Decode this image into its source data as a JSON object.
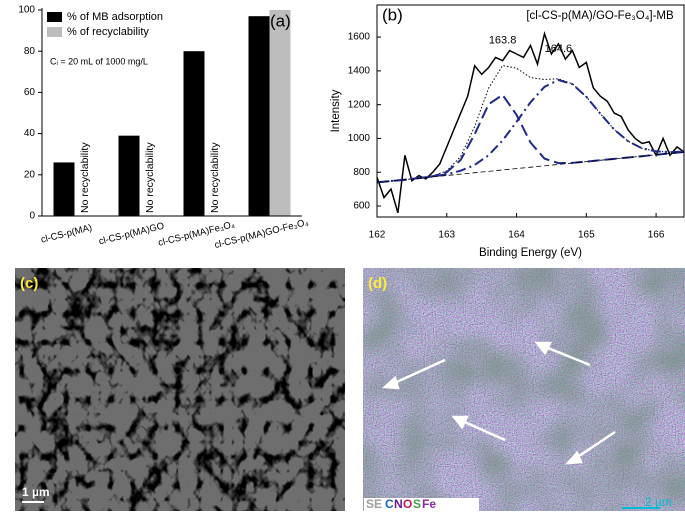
{
  "chart_data": [
    {
      "type": "bar",
      "panel_label": "(a)",
      "note": "Cᵢ = 20 mL of 1000 mg/L",
      "categories": [
        "cl-CS-p(MA)",
        "cl-CS-p(MA)GO",
        "cl-CS-p(MA)Fe₃O₄",
        "cl-CS-p(MA)GO-Fe₃O₄"
      ],
      "series": [
        {
          "name": "% of MB adsorption",
          "color": "#000000",
          "values": [
            26,
            39,
            80,
            97
          ]
        },
        {
          "name": "% of recyclability",
          "color": "#bdbdbd",
          "values": [
            null,
            null,
            null,
            100
          ],
          "value_labels": [
            "No recyclability",
            "No recyclability",
            "No recyclability",
            null
          ]
        }
      ],
      "ylim": [
        0,
        100
      ],
      "yticks": [
        0,
        20,
        40,
        60,
        80,
        100
      ],
      "legend": "upper-left"
    },
    {
      "type": "line",
      "panel_label": "(b)",
      "title": "[cl-CS-p(MA)/GO-Fe₃O₄]-MB",
      "x_label": "Binding Energy (eV)",
      "y_label": "Intensity",
      "annotations": [
        {
          "text": "163.8",
          "x": 163.8,
          "y": 1580
        },
        {
          "text": "164.6",
          "x": 164.6,
          "y": 1530
        }
      ],
      "xlim": [
        162,
        166.4
      ],
      "xticks": [
        162,
        163,
        164,
        165,
        166
      ],
      "ylim": [
        535,
        1790
      ],
      "yticks": [
        600,
        800,
        1000,
        1200,
        1400,
        1600
      ],
      "series": [
        {
          "color": "#000000",
          "style": "solid",
          "x": [
            162.0,
            162.1,
            162.2,
            162.3,
            162.4,
            162.5,
            162.6,
            162.7,
            162.8,
            162.9,
            163.0,
            163.1,
            163.2,
            163.3,
            163.4,
            163.5,
            163.6,
            163.7,
            163.8,
            163.9,
            164.0,
            164.1,
            164.2,
            164.3,
            164.4,
            164.5,
            164.6,
            164.7,
            164.8,
            164.9,
            165.0,
            165.1,
            165.2,
            165.3,
            165.4,
            165.5,
            165.6,
            165.7,
            165.8,
            165.9,
            166.0,
            166.1,
            166.2,
            166.3,
            166.4
          ],
          "values": [
            770,
            650,
            700,
            560,
            900,
            750,
            780,
            760,
            800,
            850,
            950,
            1050,
            1150,
            1250,
            1430,
            1380,
            1420,
            1480,
            1460,
            1520,
            1500,
            1480,
            1550,
            1440,
            1620,
            1500,
            1560,
            1470,
            1520,
            1420,
            1450,
            1300,
            1250,
            1220,
            1150,
            1130,
            1050,
            1000,
            970,
            980,
            900,
            1000,
            900,
            950,
            920
          ]
        },
        {
          "color": "#000000",
          "style": "dotted",
          "x": [
            162.0,
            162.2,
            162.4,
            162.6,
            162.8,
            163.0,
            163.2,
            163.4,
            163.6,
            163.8,
            164.0,
            164.2,
            164.4,
            164.6,
            164.8,
            165.0,
            165.2,
            165.4,
            165.6,
            165.8,
            166.0,
            166.2,
            166.4
          ],
          "values": [
            740,
            748,
            756,
            766,
            778,
            808,
            893,
            1071,
            1298,
            1432,
            1416,
            1360,
            1349,
            1354,
            1323,
            1247,
            1147,
            1053,
            983,
            941,
            924,
            919,
            922
          ]
        },
        {
          "color": "#1f2a8a",
          "style": "dashed",
          "x": [
            162.0,
            162.2,
            162.4,
            162.6,
            162.8,
            163.0,
            163.2,
            163.4,
            163.6,
            163.8,
            164.0,
            164.2,
            164.4,
            164.6,
            164.8,
            165.0,
            165.2,
            165.4,
            165.6,
            165.8,
            166.0,
            166.2,
            166.4
          ],
          "values": [
            740,
            748,
            756,
            765,
            776,
            801,
            873,
            1025,
            1202,
            1258,
            1140,
            976,
            881,
            854,
            855,
            863,
            871,
            879,
            887,
            895,
            904,
            912,
            920
          ]
        },
        {
          "color": "#1f2a8a",
          "style": "dashdot",
          "x": [
            162.0,
            162.2,
            162.4,
            162.6,
            162.8,
            163.0,
            163.2,
            163.4,
            163.6,
            163.8,
            164.0,
            164.2,
            164.4,
            164.6,
            164.8,
            165.0,
            165.2,
            165.4,
            165.6,
            165.8,
            166.0,
            166.2,
            166.4
          ],
          "values": [
            740,
            748,
            756,
            766,
            775,
            788,
            809,
            843,
            901,
            988,
            1098,
            1214,
            1306,
            1346,
            1322,
            1247,
            1147,
            1053,
            983,
            941,
            924,
            919,
            922
          ]
        },
        {
          "color": "#000000",
          "style": "thin-dashed",
          "x": [
            162.0,
            166.4
          ],
          "values": [
            740,
            920
          ]
        }
      ]
    }
  ],
  "panels": [
    {
      "label": "(c)",
      "scale_bar": "1 µm"
    },
    {
      "label": "(d)",
      "scale_bar": "2 µm",
      "legend": [
        "SE",
        "C",
        "N",
        "O",
        "S",
        "Fe"
      ]
    }
  ]
}
